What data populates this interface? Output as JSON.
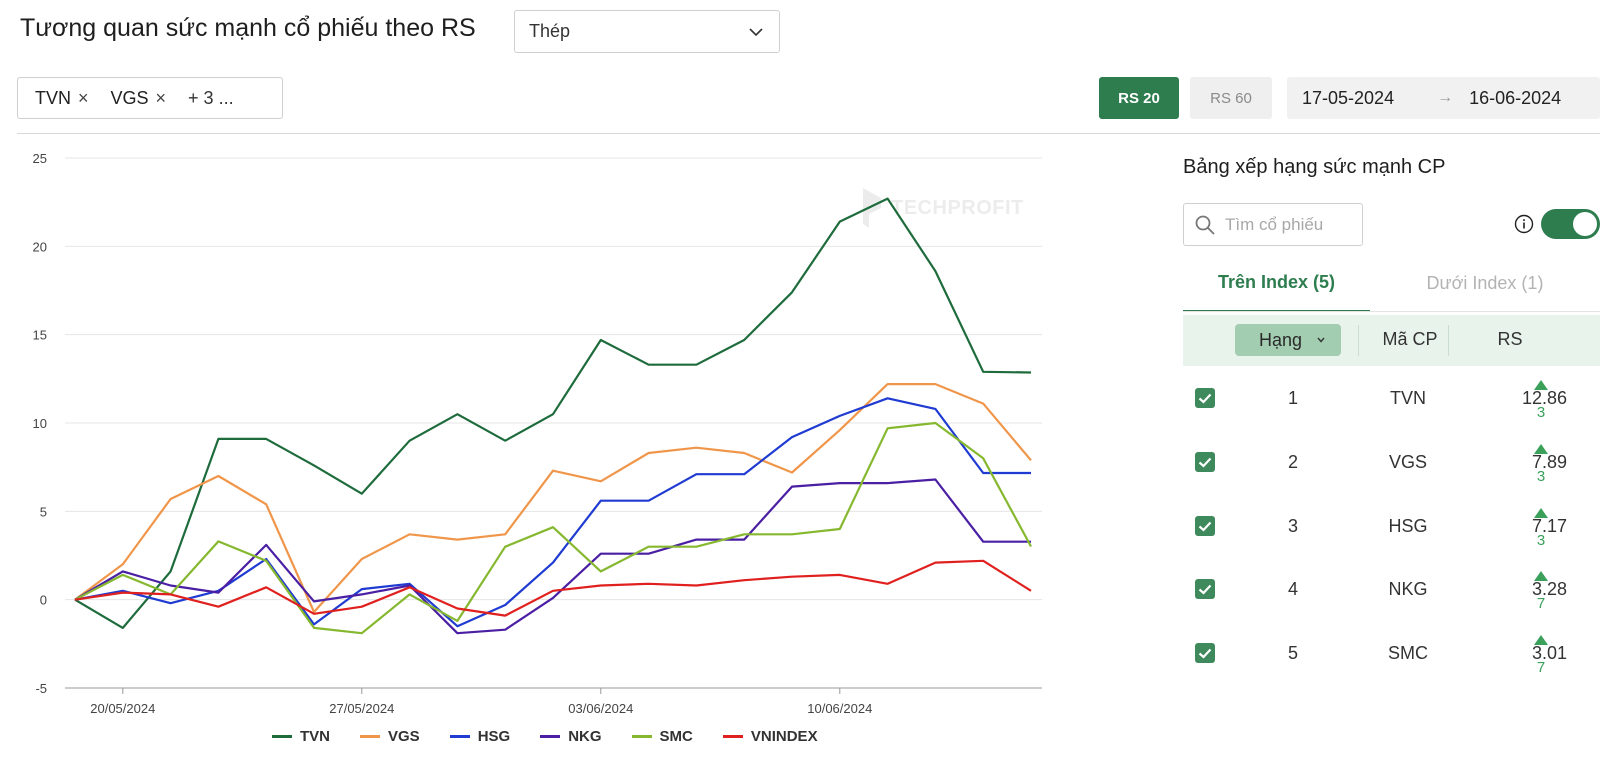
{
  "header": {
    "title": "Tương quan sức mạnh cổ phiếu theo RS",
    "industry_select": "Thép",
    "tags": [
      "TVN",
      "VGS"
    ],
    "tags_more": "+ 3 ..."
  },
  "toolbar": {
    "rs20_label": "RS 20",
    "rs60_label": "RS 60",
    "date_from": "17-05-2024",
    "date_to": "16-06-2024",
    "date_arrow": "→"
  },
  "watermark": "TECHPROFIT",
  "panel": {
    "title": "Bảng xếp hạng sức mạnh CP",
    "search_placeholder": "Tìm cổ phiếu",
    "tab_above": "Trên Index (5)",
    "tab_below": "Dưới Index (1)",
    "col_rank": "Hạng",
    "col_code": "Mã CP",
    "col_rs": "RS",
    "rows": [
      {
        "rank": "1",
        "code": "TVN",
        "rs": "12.86",
        "change": "3"
      },
      {
        "rank": "2",
        "code": "VGS",
        "rs": "7.89",
        "change": "3"
      },
      {
        "rank": "3",
        "code": "HSG",
        "rs": "7.17",
        "change": "3"
      },
      {
        "rank": "4",
        "code": "NKG",
        "rs": "3.28",
        "change": "7"
      },
      {
        "rank": "5",
        "code": "SMC",
        "rs": "3.01",
        "change": "7"
      }
    ]
  },
  "chart_data": {
    "type": "line",
    "ylim": [
      -5,
      25
    ],
    "yticks": [
      -5,
      0,
      5,
      10,
      15,
      20,
      25
    ],
    "x": [
      "17/05/2024",
      "20/05/2024",
      "21/05/2024",
      "22/05/2024",
      "23/05/2024",
      "24/05/2024",
      "27/05/2024",
      "28/05/2024",
      "29/05/2024",
      "30/05/2024",
      "31/05/2024",
      "03/06/2024",
      "04/06/2024",
      "05/06/2024",
      "06/06/2024",
      "07/06/2024",
      "10/06/2024",
      "11/06/2024",
      "12/06/2024",
      "13/06/2024",
      "14/06/2024"
    ],
    "xtick_labels": [
      "20/05/2024",
      "27/05/2024",
      "03/06/2024",
      "10/06/2024"
    ],
    "grid": true,
    "legend_position": "bottom",
    "series": [
      {
        "name": "TVN",
        "color": "#1e6b3c",
        "values": [
          0,
          -1.6,
          1.6,
          9.1,
          9.1,
          7.6,
          6.0,
          9.0,
          10.5,
          9.0,
          10.5,
          14.7,
          13.3,
          13.3,
          14.7,
          17.4,
          21.4,
          22.7,
          18.6,
          12.9,
          12.86
        ]
      },
      {
        "name": "VGS",
        "color": "#f0964a",
        "values": [
          0,
          2.0,
          5.7,
          7.0,
          5.4,
          -0.7,
          2.3,
          3.7,
          3.4,
          3.7,
          7.3,
          6.7,
          8.3,
          8.6,
          8.3,
          7.2,
          9.6,
          12.2,
          12.2,
          11.1,
          7.89
        ]
      },
      {
        "name": "HSG",
        "color": "#1f3bd1",
        "values": [
          0,
          0.5,
          -0.2,
          0.5,
          2.3,
          -1.4,
          0.6,
          0.9,
          -1.5,
          -0.3,
          2.1,
          5.6,
          5.6,
          7.1,
          7.1,
          9.2,
          10.4,
          11.4,
          10.8,
          7.17,
          7.17
        ]
      },
      {
        "name": "NKG",
        "color": "#4a1fa3",
        "values": [
          0,
          1.6,
          0.8,
          0.4,
          3.1,
          -0.1,
          0.3,
          0.8,
          -1.9,
          -1.7,
          0.1,
          2.6,
          2.6,
          3.4,
          3.4,
          6.4,
          6.6,
          6.6,
          6.8,
          3.28,
          3.28
        ]
      },
      {
        "name": "SMC",
        "color": "#86b82f",
        "values": [
          0,
          1.4,
          0.3,
          3.3,
          2.2,
          -1.6,
          -1.9,
          0.3,
          -1.2,
          3.0,
          4.1,
          1.6,
          3.0,
          3.0,
          3.7,
          3.7,
          4.0,
          9.7,
          10.0,
          8.0,
          3.01
        ]
      },
      {
        "name": "VNINDEX",
        "color": "#e0201e",
        "values": [
          0,
          0.4,
          0.3,
          -0.4,
          0.7,
          -0.8,
          -0.4,
          0.7,
          -0.5,
          -0.9,
          0.5,
          0.8,
          0.9,
          0.8,
          1.1,
          1.3,
          1.4,
          0.9,
          2.1,
          2.2,
          0.5
        ]
      }
    ]
  }
}
